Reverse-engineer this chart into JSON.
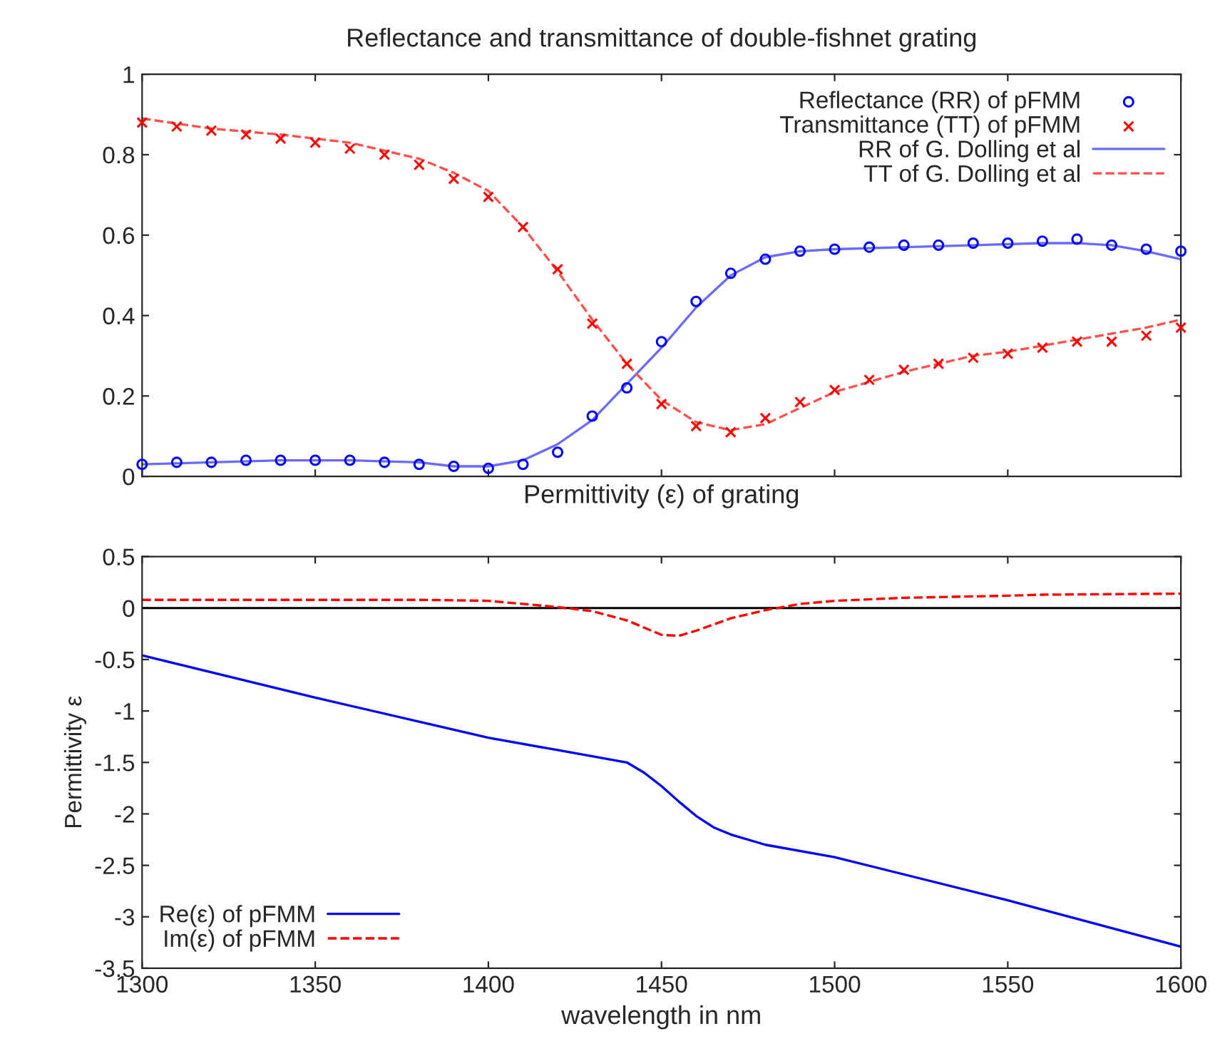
{
  "chart_data": [
    {
      "type": "scatter",
      "title": "Reflectance and transmittance of double-fishnet grating",
      "xlabel": "Permittivity (ε) of grating",
      "xlim": [
        1300,
        1600
      ],
      "xticks": [
        {
          "value": 1300,
          "label": null
        },
        {
          "value": 1350,
          "label": null
        },
        {
          "value": 1400,
          "label": null
        },
        {
          "value": 1450,
          "label": null
        },
        {
          "value": 1500,
          "label": null
        },
        {
          "value": 1550,
          "label": null
        },
        {
          "value": 1600,
          "label": null
        }
      ],
      "ylim": [
        0,
        1
      ],
      "yticks": [
        0,
        0.2,
        0.4,
        0.6,
        0.8,
        1
      ],
      "tick_labels": "y",
      "grid": false,
      "legend": "top right",
      "series": [
        {
          "name": "Reflectance (RR) of pFMM",
          "type": "scatter",
          "marker": "circle",
          "color": "#0000ff",
          "x": [
            1300,
            1310,
            1320,
            1330,
            1340,
            1350,
            1360,
            1370,
            1380,
            1390,
            1400,
            1410,
            1420,
            1430,
            1440,
            1450,
            1460,
            1470,
            1480,
            1490,
            1500,
            1510,
            1520,
            1530,
            1540,
            1550,
            1560,
            1570,
            1580,
            1590,
            1600
          ],
          "values": [
            0.03,
            0.035,
            0.035,
            0.04,
            0.04,
            0.04,
            0.04,
            0.035,
            0.03,
            0.025,
            0.02,
            0.03,
            0.06,
            0.15,
            0.22,
            0.335,
            0.435,
            0.505,
            0.54,
            0.56,
            0.565,
            0.57,
            0.575,
            0.575,
            0.58,
            0.58,
            0.585,
            0.59,
            0.575,
            0.565,
            0.56
          ]
        },
        {
          "name": "Transmittance (TT) of pFMM",
          "type": "scatter",
          "marker": "cross",
          "color": "#ff0000",
          "x": [
            1300,
            1310,
            1320,
            1330,
            1340,
            1350,
            1360,
            1370,
            1380,
            1390,
            1400,
            1410,
            1420,
            1430,
            1440,
            1450,
            1460,
            1470,
            1480,
            1490,
            1500,
            1510,
            1520,
            1530,
            1540,
            1550,
            1560,
            1570,
            1580,
            1590,
            1600
          ],
          "values": [
            0.88,
            0.87,
            0.86,
            0.85,
            0.84,
            0.83,
            0.815,
            0.8,
            0.775,
            0.74,
            0.695,
            0.62,
            0.515,
            0.38,
            0.28,
            0.18,
            0.125,
            0.11,
            0.145,
            0.185,
            0.215,
            0.24,
            0.265,
            0.28,
            0.295,
            0.305,
            0.32,
            0.335,
            0.335,
            0.35,
            0.37
          ]
        },
        {
          "name": "RR of G. Dolling et al",
          "type": "line",
          "line_style": "solid",
          "color": "#6a6aff",
          "x": [
            1300,
            1320,
            1340,
            1360,
            1380,
            1390,
            1400,
            1410,
            1420,
            1430,
            1440,
            1450,
            1460,
            1470,
            1480,
            1490,
            1500,
            1520,
            1540,
            1560,
            1570,
            1580,
            1590,
            1600
          ],
          "values": [
            0.03,
            0.035,
            0.04,
            0.04,
            0.035,
            0.025,
            0.025,
            0.04,
            0.08,
            0.14,
            0.23,
            0.32,
            0.42,
            0.5,
            0.545,
            0.56,
            0.565,
            0.57,
            0.575,
            0.58,
            0.58,
            0.575,
            0.56,
            0.54
          ]
        },
        {
          "name": "TT of G. Dolling et al",
          "type": "line",
          "line_style": "dashed",
          "color": "#ff5050",
          "x": [
            1300,
            1320,
            1340,
            1360,
            1380,
            1390,
            1400,
            1410,
            1420,
            1430,
            1440,
            1450,
            1460,
            1470,
            1480,
            1490,
            1500,
            1510,
            1520,
            1530,
            1540,
            1550,
            1560,
            1570,
            1580,
            1590,
            1600
          ],
          "values": [
            0.89,
            0.865,
            0.85,
            0.83,
            0.79,
            0.755,
            0.71,
            0.62,
            0.51,
            0.39,
            0.28,
            0.19,
            0.135,
            0.115,
            0.13,
            0.17,
            0.21,
            0.235,
            0.26,
            0.28,
            0.3,
            0.31,
            0.325,
            0.34,
            0.355,
            0.37,
            0.39
          ]
        }
      ]
    },
    {
      "type": "line",
      "xlabel": "wavelength in nm",
      "ylabel": "Permittivity ε",
      "xlim": [
        1300,
        1600
      ],
      "xticks": [
        1300,
        1350,
        1400,
        1450,
        1500,
        1550,
        1600
      ],
      "ylim": [
        -3.5,
        0.5
      ],
      "yticks": [
        -3.5,
        -3,
        -2.5,
        -2,
        -1.5,
        -1,
        -0.5,
        0,
        0.5
      ],
      "grid": false,
      "legend": "bottom left",
      "ref_lines": [
        {
          "axis": "y",
          "value": 0,
          "color": "#000000"
        }
      ],
      "series": [
        {
          "name": "Re(ε) of pFMM",
          "line_style": "solid",
          "color": "#0000ff",
          "x": [
            1300,
            1350,
            1400,
            1420,
            1440,
            1445,
            1450,
            1455,
            1460,
            1465,
            1470,
            1480,
            1500,
            1550,
            1600
          ],
          "values": [
            -0.46,
            -0.87,
            -1.26,
            -1.38,
            -1.5,
            -1.6,
            -1.73,
            -1.88,
            -2.02,
            -2.13,
            -2.2,
            -2.3,
            -2.42,
            -2.84,
            -3.29
          ]
        },
        {
          "name": "Im(ε) of pFMM",
          "line_style": "dashed",
          "color": "#ff0000",
          "x": [
            1300,
            1380,
            1400,
            1420,
            1430,
            1440,
            1450,
            1455,
            1460,
            1470,
            1480,
            1490,
            1500,
            1520,
            1550,
            1560,
            1600
          ],
          "values": [
            0.08,
            0.08,
            0.07,
            0.01,
            -0.03,
            -0.12,
            -0.26,
            -0.27,
            -0.22,
            -0.1,
            -0.02,
            0.04,
            0.07,
            0.1,
            0.12,
            0.13,
            0.14
          ]
        }
      ]
    }
  ]
}
